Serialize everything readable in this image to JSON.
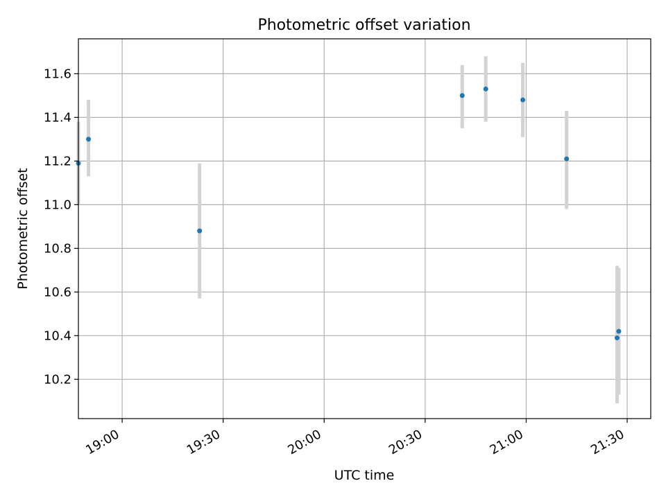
{
  "chart_data": {
    "type": "scatter",
    "title": "Photometric offset variation",
    "xlabel": "UTC time",
    "ylabel": "Photometric offset",
    "xlim": [
      "18:47:00",
      "21:37:00"
    ],
    "ylim": [
      10.02,
      11.76
    ],
    "xticks": [
      "19:00",
      "19:30",
      "20:00",
      "20:30",
      "21:00",
      "21:30"
    ],
    "yticks": [
      "10.2",
      "10.4",
      "10.6",
      "10.8",
      "11.0",
      "11.2",
      "11.4",
      "11.6"
    ],
    "grid": true,
    "points": [
      {
        "x": "18:47:00",
        "y": 11.19,
        "err_low": 11.0,
        "err_high": 11.38
      },
      {
        "x": "18:50:00",
        "y": 11.3,
        "err_low": 11.13,
        "err_high": 11.48
      },
      {
        "x": "19:23:00",
        "y": 10.88,
        "err_low": 10.57,
        "err_high": 11.19
      },
      {
        "x": "20:41:00",
        "y": 11.5,
        "err_low": 11.35,
        "err_high": 11.64
      },
      {
        "x": "20:48:00",
        "y": 11.53,
        "err_low": 11.38,
        "err_high": 11.68
      },
      {
        "x": "20:59:00",
        "y": 11.48,
        "err_low": 11.31,
        "err_high": 11.65
      },
      {
        "x": "21:12:00",
        "y": 11.21,
        "err_low": 10.98,
        "err_high": 11.43
      },
      {
        "x": "21:27:00",
        "y": 10.39,
        "err_low": 10.09,
        "err_high": 10.72
      },
      {
        "x": "21:27:30",
        "y": 10.42,
        "err_low": 10.13,
        "err_high": 10.71
      }
    ],
    "colors": {
      "point": "#1f77b4",
      "errorbar": "#d3d3d3",
      "grid": "#b0b0b0",
      "axis": "#000000"
    }
  }
}
